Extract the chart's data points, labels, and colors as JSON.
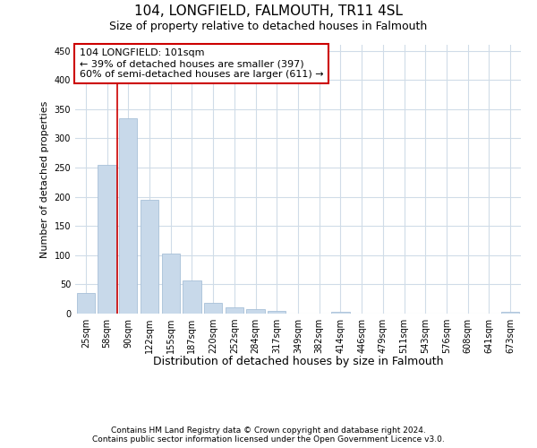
{
  "title": "104, LONGFIELD, FALMOUTH, TR11 4SL",
  "subtitle": "Size of property relative to detached houses in Falmouth",
  "xlabel": "Distribution of detached houses by size in Falmouth",
  "ylabel": "Number of detached properties",
  "categories": [
    "25sqm",
    "58sqm",
    "90sqm",
    "122sqm",
    "155sqm",
    "187sqm",
    "220sqm",
    "252sqm",
    "284sqm",
    "317sqm",
    "349sqm",
    "382sqm",
    "414sqm",
    "446sqm",
    "479sqm",
    "511sqm",
    "543sqm",
    "576sqm",
    "608sqm",
    "641sqm",
    "673sqm"
  ],
  "values": [
    35,
    255,
    335,
    195,
    103,
    57,
    18,
    10,
    7,
    4,
    0,
    0,
    3,
    0,
    0,
    0,
    0,
    0,
    0,
    0,
    3
  ],
  "bar_color": "#c8d9ea",
  "bar_edge_color": "#a8c0d8",
  "vline_x": 1.5,
  "vline_color": "#cc0000",
  "property_label": "104 LONGFIELD: 101sqm",
  "annotation_line1": "← 39% of detached houses are smaller (397)",
  "annotation_line2": "60% of semi-detached houses are larger (611) →",
  "annotation_box_fc": "#ffffff",
  "annotation_box_ec": "#cc0000",
  "background_color": "#ffffff",
  "grid_color": "#d0dce8",
  "footer_line1": "Contains HM Land Registry data © Crown copyright and database right 2024.",
  "footer_line2": "Contains public sector information licensed under the Open Government Licence v3.0.",
  "ylim": [
    0,
    460
  ],
  "yticks": [
    0,
    50,
    100,
    150,
    200,
    250,
    300,
    350,
    400,
    450
  ],
  "figsize": [
    6.0,
    5.0
  ],
  "dpi": 100,
  "title_fontsize": 11,
  "subtitle_fontsize": 9,
  "annotation_fontsize": 8,
  "tick_fontsize": 7,
  "footer_fontsize": 6.5,
  "ylabel_fontsize": 8,
  "xlabel_fontsize": 9
}
